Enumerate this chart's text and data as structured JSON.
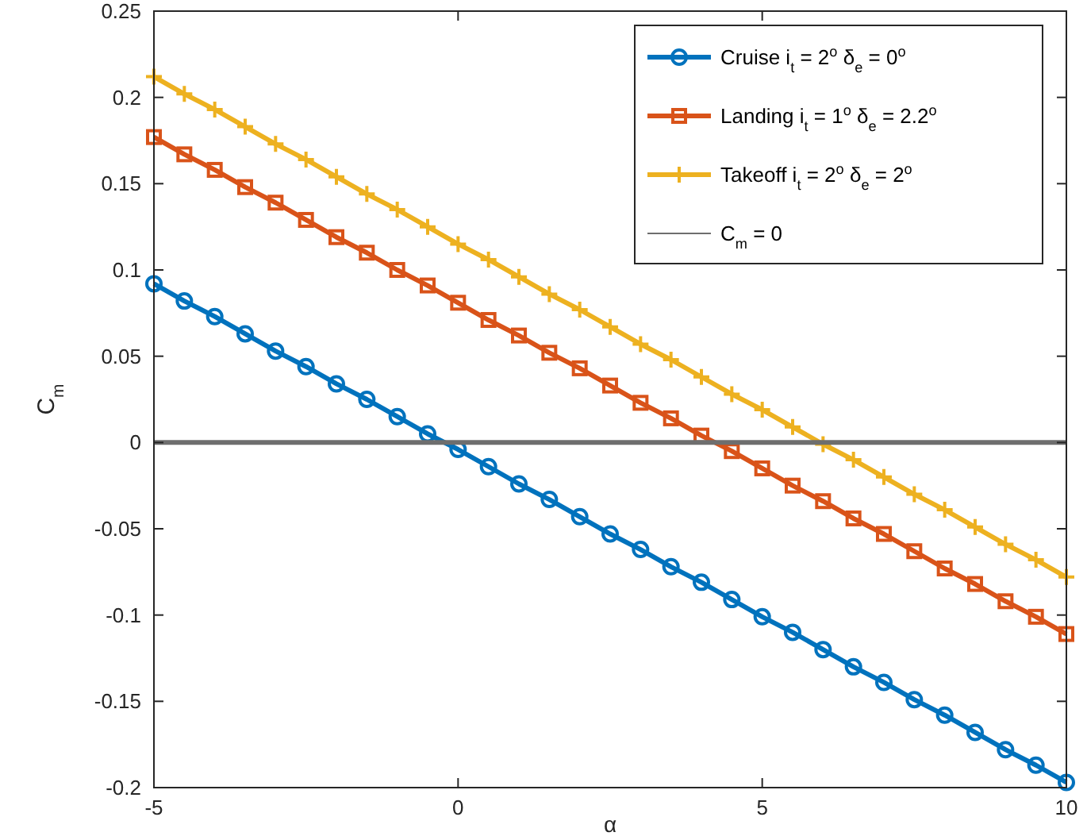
{
  "chart_data": {
    "type": "line",
    "xlabel": "α",
    "ylabel": "C$_{m}$",
    "xlim": [
      -5,
      10
    ],
    "xticks": [
      -5,
      0,
      5,
      10
    ],
    "ylim": [
      -0.2,
      0.25
    ],
    "yticks": [
      -0.2,
      -0.15,
      -0.1,
      -0.05,
      0,
      0.05,
      0.1,
      0.15,
      0.2,
      0.25
    ],
    "grid": false,
    "legend": "top right",
    "line_style": "solid",
    "x": [
      -5,
      -4.5,
      -4,
      -3.5,
      -3,
      -2.5,
      -2,
      -1.5,
      -1,
      -0.5,
      0,
      0.5,
      1,
      1.5,
      2,
      2.5,
      3,
      3.5,
      4,
      4.5,
      5,
      5.5,
      6,
      6.5,
      7,
      7.5,
      8,
      8.5,
      9,
      9.5,
      10
    ],
    "series": [
      {
        "name": "Cruise i$_{t}$ = 2$^{o}$ δ$_{e}$ = 0$^{o}$",
        "color": "#0072bd",
        "marker": "circle",
        "values": [
          0.092,
          0.082,
          0.073,
          0.063,
          0.053,
          0.044,
          0.034,
          0.025,
          0.015,
          0.005,
          -0.004,
          -0.014,
          -0.024,
          -0.033,
          -0.043,
          -0.053,
          -0.062,
          -0.072,
          -0.081,
          -0.091,
          -0.101,
          -0.11,
          -0.12,
          -0.13,
          -0.139,
          -0.149,
          -0.158,
          -0.168,
          -0.178,
          -0.187,
          -0.197
        ]
      },
      {
        "name": "Landing i$_{t}$ = 1$^{o}$ δ$_{e}$ = 2.2$^{o}$",
        "color": "#d95319",
        "marker": "square",
        "values": [
          0.177,
          0.167,
          0.158,
          0.148,
          0.139,
          0.129,
          0.119,
          0.11,
          0.1,
          0.091,
          0.081,
          0.071,
          0.062,
          0.052,
          0.043,
          0.033,
          0.023,
          0.014,
          0.004,
          -0.005,
          -0.015,
          -0.025,
          -0.034,
          -0.044,
          -0.053,
          -0.063,
          -0.073,
          -0.082,
          -0.092,
          -0.101,
          -0.111
        ]
      },
      {
        "name": "Takeoff i$_{t}$ = 2$^{o}$ δ$_{e}$ = 2$^{o}$",
        "color": "#edb120",
        "marker": "cross",
        "values": [
          0.212,
          0.202,
          0.193,
          0.183,
          0.173,
          0.164,
          0.154,
          0.144,
          0.135,
          0.125,
          0.115,
          0.106,
          0.096,
          0.086,
          0.077,
          0.067,
          0.057,
          0.048,
          0.038,
          0.028,
          0.019,
          0.009,
          -0.001,
          -0.01,
          -0.02,
          -0.03,
          -0.039,
          -0.049,
          -0.059,
          -0.068,
          -0.078
        ]
      },
      {
        "name": "C$_{m}$ = 0",
        "color": "#6e6e6e",
        "marker": "none",
        "x": [
          -5,
          10
        ],
        "values": [
          0,
          0
        ]
      }
    ]
  }
}
